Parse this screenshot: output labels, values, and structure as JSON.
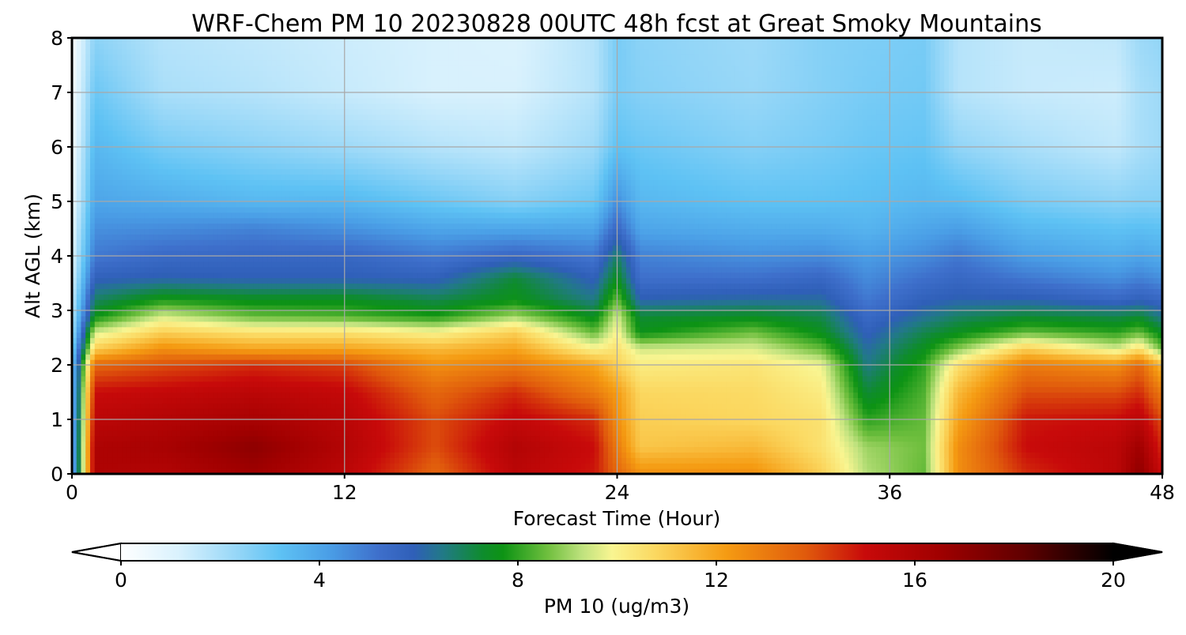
{
  "chart_data": {
    "type": "heatmap",
    "title": "WRF-Chem PM 10  20230828 00UTC 48h fcst at Great Smoky Mountains",
    "xlabel": "Forecast Time (Hour)",
    "ylabel": "Alt AGL (km)",
    "xlim": [
      0,
      48
    ],
    "ylim": [
      0,
      8
    ],
    "xticks": [
      0,
      12,
      24,
      36,
      48
    ],
    "yticks": [
      0,
      1,
      2,
      3,
      4,
      5,
      6,
      7,
      8
    ],
    "grid": true,
    "colorbar": {
      "label": "PM 10  (ug/m3)",
      "range": [
        0,
        20
      ],
      "ticks": [
        0,
        4,
        8,
        12,
        16,
        20
      ],
      "extend": "both",
      "orientation": "horizontal",
      "color_stops": [
        {
          "value": 0,
          "color": "#ffffff"
        },
        {
          "value": 1.2,
          "color": "#d8f1fd"
        },
        {
          "value": 2.4,
          "color": "#92d5f7"
        },
        {
          "value": 3.2,
          "color": "#5ec2f4"
        },
        {
          "value": 4.2,
          "color": "#4a9ee6"
        },
        {
          "value": 5.2,
          "color": "#3e6fcb"
        },
        {
          "value": 5.9,
          "color": "#2f5fb8"
        },
        {
          "value": 6.5,
          "color": "#217a85"
        },
        {
          "value": 7.3,
          "color": "#0e8c2c"
        },
        {
          "value": 7.7,
          "color": "#0d9314"
        },
        {
          "value": 8.6,
          "color": "#6fbf3e"
        },
        {
          "value": 9.3,
          "color": "#bfe27e"
        },
        {
          "value": 9.9,
          "color": "#f9f591"
        },
        {
          "value": 10.8,
          "color": "#fbd75f"
        },
        {
          "value": 12.2,
          "color": "#f59b12"
        },
        {
          "value": 13.8,
          "color": "#e05a0c"
        },
        {
          "value": 15.0,
          "color": "#c80a0a"
        },
        {
          "value": 16.5,
          "color": "#a00000"
        },
        {
          "value": 18.2,
          "color": "#600000"
        },
        {
          "value": 20.0,
          "color": "#000000"
        }
      ]
    },
    "altitudes_km": [
      0,
      0.5,
      1,
      1.5,
      2,
      2.3,
      2.6,
      2.9,
      3.2,
      3.6,
      4.0,
      4.5,
      5.0,
      6.0,
      7.0,
      8.0
    ],
    "series": [
      {
        "hour": 0.0,
        "values": [
          3,
          3,
          3,
          3,
          3,
          2.5,
          2,
          1.8,
          1.5,
          1.2,
          1,
          0.8,
          0.6,
          0.4,
          0.3,
          0.2
        ]
      },
      {
        "hour": 1.0,
        "values": [
          16,
          16,
          15.5,
          15,
          13.5,
          11,
          9.5,
          7.6,
          6.8,
          5.8,
          5,
          4.5,
          4,
          3.5,
          3,
          2.5
        ]
      },
      {
        "hour": 4.0,
        "values": [
          15.8,
          16.2,
          15.8,
          15.2,
          14,
          12.5,
          11,
          9.5,
          7.8,
          6,
          5.4,
          4.6,
          3.8,
          2.8,
          2,
          1.8
        ]
      },
      {
        "hour": 8.0,
        "values": [
          16.5,
          17,
          16.2,
          15.5,
          14.5,
          12,
          10.5,
          8.5,
          7.5,
          5.9,
          5.5,
          4.8,
          3.5,
          2.5,
          1.8,
          1.6
        ]
      },
      {
        "hour": 12.0,
        "values": [
          15.5,
          15.8,
          15.6,
          15.2,
          14.2,
          12,
          10.5,
          8.3,
          7.5,
          5.9,
          5.5,
          4.5,
          3.5,
          2.2,
          1.5,
          1.4
        ]
      },
      {
        "hour": 16.0,
        "values": [
          13.5,
          14,
          14,
          13.5,
          12.5,
          11.5,
          10,
          7.8,
          7,
          5.8,
          5,
          4,
          3,
          1.8,
          1.2,
          1.2
        ]
      },
      {
        "hour": 19.5,
        "values": [
          15.5,
          15.8,
          15.2,
          14.5,
          13,
          12,
          11,
          9,
          7.6,
          7.2,
          5.5,
          4,
          2.6,
          1.6,
          1.2,
          1.1
        ]
      },
      {
        "hour": 23.0,
        "values": [
          14.8,
          15,
          14.5,
          13,
          12,
          10,
          8.5,
          7.4,
          6.5,
          5.8,
          5,
          4,
          3,
          2.2,
          1.8,
          1.8
        ]
      },
      {
        "hour": 24.0,
        "values": [
          13.5,
          13,
          12.5,
          12.2,
          11,
          10.5,
          10,
          9.5,
          8.5,
          7.5,
          6.8,
          5.5,
          4.5,
          3.2,
          2.8,
          2.8
        ]
      },
      {
        "hour": 25.0,
        "values": [
          12.5,
          11.2,
          11,
          10.8,
          10.2,
          9.5,
          7.6,
          7.2,
          6,
          5.2,
          4.8,
          4,
          3.5,
          3,
          2.6,
          2.5
        ]
      },
      {
        "hour": 30.0,
        "values": [
          12.5,
          11.5,
          10.8,
          10.7,
          10.4,
          9.6,
          8.6,
          7.4,
          6.2,
          5.2,
          4.5,
          3.8,
          3.2,
          2.6,
          2.3,
          2.2
        ]
      },
      {
        "hour": 33.0,
        "values": [
          11,
          10.5,
          10.5,
          10.2,
          9.8,
          8.5,
          7.5,
          7,
          6.2,
          5.5,
          4.6,
          3.8,
          3.2,
          2.8,
          2.6,
          2.6
        ]
      },
      {
        "hour": 35.0,
        "values": [
          9.2,
          9,
          8,
          7.2,
          6.5,
          6.2,
          5.8,
          5.4,
          5,
          4.6,
          4.2,
          3.6,
          3.3,
          3,
          2.8,
          2.7
        ]
      },
      {
        "hour": 37.5,
        "values": [
          8.5,
          8.6,
          8.5,
          8.3,
          8,
          7.5,
          7,
          6.3,
          5.8,
          5.2,
          4.6,
          4,
          3.5,
          3.1,
          2.9,
          2.8
        ]
      },
      {
        "hour": 39.0,
        "values": [
          12.5,
          12.5,
          12,
          11.5,
          10.5,
          8.8,
          7.5,
          6.8,
          6,
          5.5,
          5,
          4.2,
          3.4,
          2.4,
          1.8,
          1.8
        ]
      },
      {
        "hour": 42.0,
        "values": [
          14.5,
          15,
          14.8,
          14,
          13,
          11,
          8.5,
          7.2,
          6,
          5,
          4.2,
          3.5,
          2.8,
          2,
          1.5,
          1.5
        ]
      },
      {
        "hour": 46.0,
        "values": [
          15.5,
          15.5,
          15,
          14,
          12.5,
          9.5,
          8,
          7,
          5.5,
          4.5,
          3.8,
          3.2,
          2.5,
          1.6,
          1.4,
          1.6
        ]
      },
      {
        "hour": 47.0,
        "values": [
          17,
          16.5,
          15.5,
          14.5,
          13.5,
          10.5,
          8.5,
          7.2,
          5.8,
          4.8,
          4,
          3.3,
          2.6,
          2,
          2,
          2.2
        ]
      },
      {
        "hour": 48.0,
        "values": [
          15,
          14.5,
          14,
          13,
          11.5,
          8.5,
          7.4,
          6.4,
          5.5,
          4.5,
          3.8,
          3.2,
          2.6,
          2.2,
          2.2,
          2.4
        ]
      }
    ]
  }
}
